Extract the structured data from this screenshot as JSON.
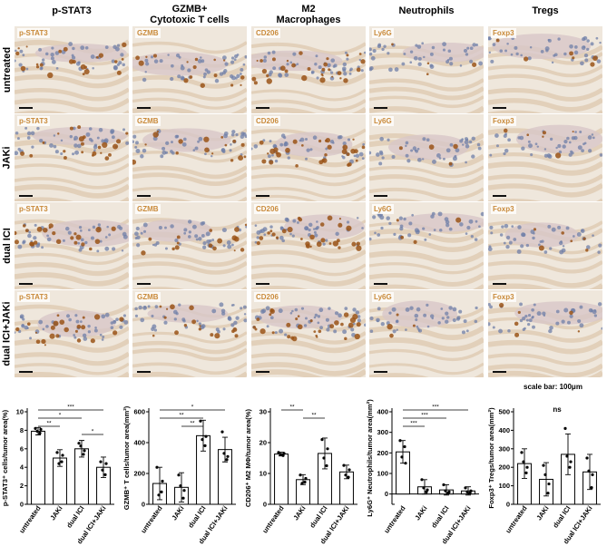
{
  "figure": {
    "column_headers": [
      {
        "id": "pstat3",
        "line1": "p-STAT3",
        "line2": ""
      },
      {
        "id": "gzmb",
        "line1": "GZMB+",
        "line2": "Cytotoxic T cells"
      },
      {
        "id": "m2",
        "line1": "M2",
        "line2": "Macrophages"
      },
      {
        "id": "neut",
        "line1": "Neutrophils",
        "line2": ""
      },
      {
        "id": "tregs",
        "line1": "Tregs",
        "line2": ""
      }
    ],
    "row_headers": [
      "untreated",
      "JAKi",
      "dual ICI",
      "dual ICI+JAKi"
    ],
    "stain_labels": [
      "p-STAT3",
      "GZMB",
      "CD206",
      "Ly6G",
      "Foxp3"
    ],
    "scale_bar_label": "scale bar: 100μm",
    "colors": {
      "tissue_bg": "#efe7dc",
      "tissue_fiber": "#e0cdb6",
      "nuclei": "#6f7fa8",
      "brown_stain": "#9a5418",
      "label_text": "#c98a3a",
      "bar_fill": "#ffffff",
      "bar_stroke": "#000000",
      "dot": "#000000"
    }
  },
  "chart_data": [
    {
      "type": "bar",
      "ylabel": "p-STAT3⁺ cells/tumor area(%)",
      "categories": [
        "untreated",
        "JAKi",
        "dual ICI",
        "dual ICI+JAKi"
      ],
      "values": [
        7.9,
        5.0,
        6.0,
        4.0
      ],
      "errors": [
        0.4,
        0.9,
        0.9,
        1.1
      ],
      "ylim": [
        0,
        10
      ],
      "yticks": [
        "0",
        "2",
        "4",
        "6",
        "8",
        "10"
      ],
      "points": [
        [
          8.2,
          7.7,
          7.9,
          8.1
        ],
        [
          5.6,
          4.6,
          4.4,
          5.3
        ],
        [
          6.6,
          5.4,
          6.3,
          5.8
        ],
        [
          4.6,
          3.2,
          3.7,
          4.4
        ]
      ],
      "significance": [
        {
          "from": 0,
          "to": 3,
          "label": "***"
        },
        {
          "from": 0,
          "to": 2,
          "label": "*"
        },
        {
          "from": 0,
          "to": 1,
          "label": "**"
        },
        {
          "from": 2,
          "to": 3,
          "label": "*"
        }
      ]
    },
    {
      "type": "bar",
      "ylabel": "GZMB⁺ T cells/tumor area(mm²)",
      "categories": [
        "untreated",
        "JAKi",
        "dual ICI",
        "dual ICI+JAKi"
      ],
      "values": [
        135,
        110,
        445,
        355
      ],
      "errors": [
        105,
        95,
        100,
        80
      ],
      "ylim": [
        0,
        600
      ],
      "yticks": [
        "0",
        "200",
        "400",
        "600"
      ],
      "points": [
        [
          240,
          80,
          60,
          150
        ],
        [
          190,
          40,
          120,
          90
        ],
        [
          540,
          380,
          420,
          440
        ],
        [
          470,
          290,
          330,
          310
        ]
      ],
      "significance": [
        {
          "from": 0,
          "to": 3,
          "label": "*"
        },
        {
          "from": 0,
          "to": 2,
          "label": "**"
        },
        {
          "from": 1,
          "to": 2,
          "label": "**"
        }
      ]
    },
    {
      "type": "bar",
      "ylabel": "CD206⁺ M2 MΦ/tumor area(%)",
      "categories": [
        "untreated",
        "JAKi",
        "dual ICI",
        "dual ICI+JAKi"
      ],
      "values": [
        16.3,
        8.0,
        16.5,
        10.5
      ],
      "errors": [
        0.6,
        1.6,
        5.0,
        2.2
      ],
      "ylim": [
        0,
        30
      ],
      "yticks": [
        "0",
        "10",
        "20",
        "30"
      ],
      "points": [
        [
          16.8,
          15.8,
          16.2,
          16.5
        ],
        [
          9.5,
          7.2,
          6.8,
          8.4
        ],
        [
          21.0,
          12.5,
          15.0,
          18.0
        ],
        [
          12.6,
          8.8,
          9.5,
          11.2
        ]
      ],
      "significance": [
        {
          "from": 0,
          "to": 1,
          "label": "**"
        },
        {
          "from": 1,
          "to": 2,
          "label": "**"
        }
      ]
    },
    {
      "type": "bar",
      "ylabel": "Ly6G⁺ Neutrophils/tumor area(mm²)",
      "categories": [
        "untreated",
        "JAKi",
        "dual ICI",
        "dual ICI+JAKi"
      ],
      "values": [
        205,
        35,
        20,
        15
      ],
      "errors": [
        55,
        35,
        25,
        20
      ],
      "ylim": [
        -50,
        400
      ],
      "yticks": [
        "0",
        "100",
        "200",
        "300",
        "400"
      ],
      "points": [
        [
          260,
          230,
          180,
          150
        ],
        [
          70,
          10,
          30,
          20
        ],
        [
          45,
          5,
          15,
          10
        ],
        [
          30,
          5,
          10,
          15
        ]
      ],
      "significance": [
        {
          "from": 0,
          "to": 3,
          "label": "***"
        },
        {
          "from": 0,
          "to": 2,
          "label": "***"
        },
        {
          "from": 0,
          "to": 1,
          "label": "***"
        }
      ]
    },
    {
      "type": "bar",
      "ylabel": "Foxp3⁺ Tregs/tumor area(mm²)",
      "categories": [
        "untreated",
        "JAKi",
        "dual ICI",
        "dual ICI+JAKi"
      ],
      "values": [
        220,
        135,
        270,
        175
      ],
      "errors": [
        80,
        90,
        110,
        95
      ],
      "ylim": [
        0,
        500
      ],
      "yticks": [
        "0",
        "100",
        "200",
        "300",
        "400",
        "500"
      ],
      "points": [
        [
          280,
          170,
          230,
          200
        ],
        [
          210,
          60,
          160,
          110
        ],
        [
          410,
          200,
          260,
          230
        ],
        [
          250,
          90,
          180,
          160
        ]
      ],
      "significance": [
        {
          "from": 0,
          "to": 3,
          "label": "ns",
          "bracket": false
        }
      ]
    }
  ]
}
